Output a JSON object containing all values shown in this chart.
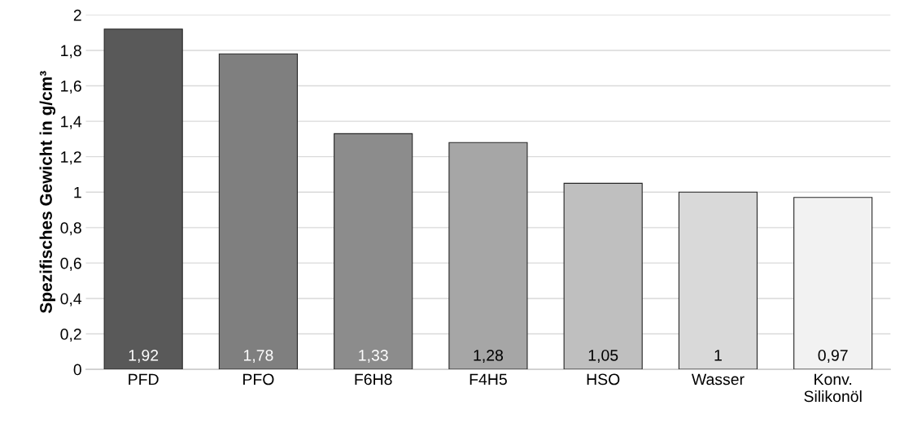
{
  "chart_data": {
    "type": "bar",
    "ylabel": "Spezifisches Gewicht in g/cm³",
    "categories": [
      "PFD",
      "PFO",
      "F6H8",
      "F4H5",
      "HSO",
      "Wasser",
      "Konv.\nSilikonöl"
    ],
    "values": [
      1.92,
      1.78,
      1.33,
      1.28,
      1.05,
      1,
      0.97
    ],
    "colors": [
      "#595959",
      "#7f7f7f",
      "#8c8c8c",
      "#a6a6a6",
      "#bfbfbf",
      "#d9d9d9",
      "#f2f2f2"
    ],
    "value_labels": [
      "1,92",
      "1,78",
      "1,33",
      "1,28",
      "1,05",
      "1",
      "0,97"
    ],
    "ylim": [
      0,
      2
    ],
    "yticks": [
      0,
      {
        "value": 0.2,
        "label": "0,2"
      },
      {
        "value": 0.4,
        "label": "0,4"
      },
      {
        "value": 0.6,
        "label": "0,6"
      },
      {
        "value": 0.8,
        "label": "0,8"
      },
      1,
      {
        "value": 1.2,
        "label": "1,2"
      },
      {
        "value": 1.4,
        "label": "1,4"
      },
      {
        "value": 1.6,
        "label": "1,6"
      },
      {
        "value": 1.8,
        "label": "1,8"
      },
      2
    ],
    "grid": "y",
    "legend": false
  }
}
